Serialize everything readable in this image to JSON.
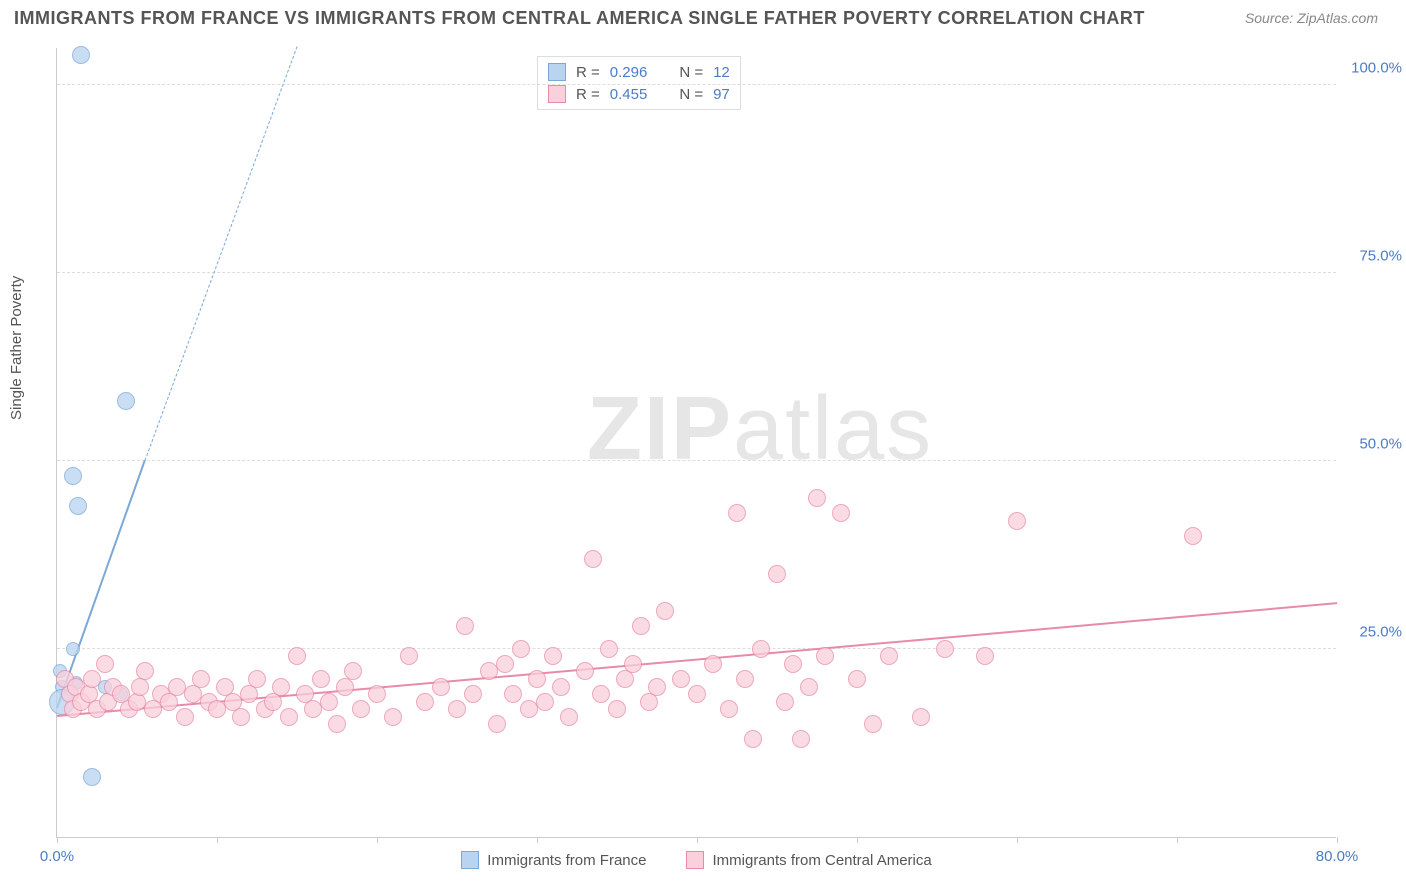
{
  "title": "IMMIGRANTS FROM FRANCE VS IMMIGRANTS FROM CENTRAL AMERICA SINGLE FATHER POVERTY CORRELATION CHART",
  "source": "Source: ZipAtlas.com",
  "y_axis_label": "Single Father Poverty",
  "watermark_bold": "ZIP",
  "watermark_light": "atlas",
  "chart": {
    "type": "scatter",
    "xlim": [
      0,
      80
    ],
    "ylim": [
      0,
      105
    ],
    "x_ticks": [
      0,
      10,
      20,
      30,
      40,
      50,
      60,
      70,
      80
    ],
    "x_tick_labels": {
      "0": "0.0%",
      "80": "80.0%"
    },
    "y_ticks": [
      25,
      50,
      75,
      100
    ],
    "y_tick_labels": {
      "25": "25.0%",
      "50": "50.0%",
      "75": "75.0%",
      "100": "100.0%"
    },
    "background_color": "#ffffff",
    "grid_color": "#dddddd",
    "axis_color": "#cccccc"
  },
  "series": [
    {
      "name": "Immigrants from France",
      "color_fill": "#b8d4f0",
      "color_stroke": "#7aa8d8",
      "marker_radius": 9,
      "r_label": "R =",
      "r_value": "0.296",
      "n_label": "N =",
      "n_value": "12",
      "regression": {
        "x1": 0,
        "y1": 17,
        "x2": 5.5,
        "y2": 50,
        "dash_x2": 15,
        "dash_y2": 105
      },
      "points": [
        {
          "x": 1.5,
          "y": 104,
          "r": 9
        },
        {
          "x": 4.3,
          "y": 58,
          "r": 9
        },
        {
          "x": 1.0,
          "y": 48,
          "r": 9
        },
        {
          "x": 1.3,
          "y": 44,
          "r": 9
        },
        {
          "x": 1.0,
          "y": 25,
          "r": 7
        },
        {
          "x": 0.2,
          "y": 22,
          "r": 7
        },
        {
          "x": 0.3,
          "y": 20,
          "r": 7
        },
        {
          "x": 0.3,
          "y": 18,
          "r": 13
        },
        {
          "x": 1.2,
          "y": 20.5,
          "r": 7
        },
        {
          "x": 3.0,
          "y": 20,
          "r": 7
        },
        {
          "x": 4.0,
          "y": 19,
          "r": 7
        },
        {
          "x": 2.2,
          "y": 8,
          "r": 9
        }
      ]
    },
    {
      "name": "Immigrants from Central America",
      "color_fill": "#f9d0db",
      "color_stroke": "#e88ba8",
      "marker_radius": 9,
      "r_label": "R =",
      "r_value": "0.455",
      "n_label": "N =",
      "n_value": "97",
      "regression": {
        "x1": 0,
        "y1": 16,
        "x2": 80,
        "y2": 31
      },
      "points": [
        {
          "x": 0.5,
          "y": 21
        },
        {
          "x": 0.8,
          "y": 19
        },
        {
          "x": 1.0,
          "y": 17
        },
        {
          "x": 1.2,
          "y": 20
        },
        {
          "x": 1.5,
          "y": 18
        },
        {
          "x": 2.0,
          "y": 19
        },
        {
          "x": 2.2,
          "y": 21
        },
        {
          "x": 2.5,
          "y": 17
        },
        {
          "x": 3.0,
          "y": 23
        },
        {
          "x": 3.2,
          "y": 18
        },
        {
          "x": 3.5,
          "y": 20
        },
        {
          "x": 4.0,
          "y": 19
        },
        {
          "x": 4.5,
          "y": 17
        },
        {
          "x": 5.0,
          "y": 18
        },
        {
          "x": 5.2,
          "y": 20
        },
        {
          "x": 5.5,
          "y": 22
        },
        {
          "x": 6.0,
          "y": 17
        },
        {
          "x": 6.5,
          "y": 19
        },
        {
          "x": 7.0,
          "y": 18
        },
        {
          "x": 7.5,
          "y": 20
        },
        {
          "x": 8.0,
          "y": 16
        },
        {
          "x": 8.5,
          "y": 19
        },
        {
          "x": 9.0,
          "y": 21
        },
        {
          "x": 9.5,
          "y": 18
        },
        {
          "x": 10.0,
          "y": 17
        },
        {
          "x": 10.5,
          "y": 20
        },
        {
          "x": 11.0,
          "y": 18
        },
        {
          "x": 11.5,
          "y": 16
        },
        {
          "x": 12.0,
          "y": 19
        },
        {
          "x": 12.5,
          "y": 21
        },
        {
          "x": 13.0,
          "y": 17
        },
        {
          "x": 13.5,
          "y": 18
        },
        {
          "x": 14.0,
          "y": 20
        },
        {
          "x": 14.5,
          "y": 16
        },
        {
          "x": 15.0,
          "y": 24
        },
        {
          "x": 15.5,
          "y": 19
        },
        {
          "x": 16.0,
          "y": 17
        },
        {
          "x": 16.5,
          "y": 21
        },
        {
          "x": 17.0,
          "y": 18
        },
        {
          "x": 17.5,
          "y": 15
        },
        {
          "x": 18.0,
          "y": 20
        },
        {
          "x": 18.5,
          "y": 22
        },
        {
          "x": 19.0,
          "y": 17
        },
        {
          "x": 20.0,
          "y": 19
        },
        {
          "x": 21.0,
          "y": 16
        },
        {
          "x": 22.0,
          "y": 24
        },
        {
          "x": 23.0,
          "y": 18
        },
        {
          "x": 24.0,
          "y": 20
        },
        {
          "x": 25.0,
          "y": 17
        },
        {
          "x": 25.5,
          "y": 28
        },
        {
          "x": 26.0,
          "y": 19
        },
        {
          "x": 27.0,
          "y": 22
        },
        {
          "x": 27.5,
          "y": 15
        },
        {
          "x": 28.0,
          "y": 23
        },
        {
          "x": 28.5,
          "y": 19
        },
        {
          "x": 29.0,
          "y": 25
        },
        {
          "x": 29.5,
          "y": 17
        },
        {
          "x": 30.0,
          "y": 21
        },
        {
          "x": 30.5,
          "y": 18
        },
        {
          "x": 31.0,
          "y": 24
        },
        {
          "x": 31.5,
          "y": 20
        },
        {
          "x": 32.0,
          "y": 16
        },
        {
          "x": 33.0,
          "y": 22
        },
        {
          "x": 33.5,
          "y": 37
        },
        {
          "x": 34.0,
          "y": 19
        },
        {
          "x": 34.5,
          "y": 25
        },
        {
          "x": 35.0,
          "y": 17
        },
        {
          "x": 35.5,
          "y": 21
        },
        {
          "x": 36.0,
          "y": 23
        },
        {
          "x": 36.5,
          "y": 28
        },
        {
          "x": 37.0,
          "y": 18
        },
        {
          "x": 37.5,
          "y": 20
        },
        {
          "x": 38.0,
          "y": 30
        },
        {
          "x": 39.0,
          "y": 21
        },
        {
          "x": 40.0,
          "y": 19
        },
        {
          "x": 41.0,
          "y": 23
        },
        {
          "x": 42.0,
          "y": 17
        },
        {
          "x": 42.5,
          "y": 43
        },
        {
          "x": 43.0,
          "y": 21
        },
        {
          "x": 43.5,
          "y": 13
        },
        {
          "x": 44.0,
          "y": 25
        },
        {
          "x": 45.0,
          "y": 35
        },
        {
          "x": 45.5,
          "y": 18
        },
        {
          "x": 46.0,
          "y": 23
        },
        {
          "x": 46.5,
          "y": 13
        },
        {
          "x": 47.0,
          "y": 20
        },
        {
          "x": 47.5,
          "y": 45
        },
        {
          "x": 48.0,
          "y": 24
        },
        {
          "x": 49.0,
          "y": 43
        },
        {
          "x": 50.0,
          "y": 21
        },
        {
          "x": 51.0,
          "y": 15
        },
        {
          "x": 52.0,
          "y": 24
        },
        {
          "x": 54.0,
          "y": 16
        },
        {
          "x": 55.5,
          "y": 25
        },
        {
          "x": 58.0,
          "y": 24
        },
        {
          "x": 60.0,
          "y": 42
        },
        {
          "x": 71.0,
          "y": 40
        }
      ]
    }
  ],
  "bottom_legend": [
    {
      "swatch_fill": "#b8d4f0",
      "swatch_stroke": "#7aa8d8",
      "label": "Immigrants from France"
    },
    {
      "swatch_fill": "#f9d0db",
      "swatch_stroke": "#e88ba8",
      "label": "Immigrants from Central America"
    }
  ]
}
